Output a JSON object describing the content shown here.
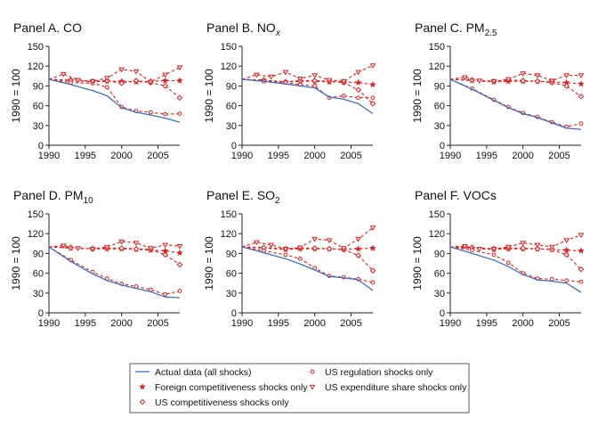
{
  "chart_data": [
    {
      "type": "line",
      "id": "A",
      "title": "Panel A. CO",
      "title_main": "Panel A. CO",
      "title_sub": "",
      "title_tail": "",
      "ylabel": "1990 = 100",
      "xlim": [
        1990,
        2008
      ],
      "ylim": [
        0,
        150
      ],
      "xticks": [
        "1990",
        "1995",
        "2000",
        "2005"
      ],
      "yticks": [
        "0",
        "30",
        "60",
        "90",
        "120",
        "150"
      ],
      "series": [
        {
          "name": "Actual data (all shocks)",
          "x": [
            1990,
            1993,
            1996,
            1998,
            2000,
            2002,
            2004,
            2006,
            2008
          ],
          "values": [
            100,
            92,
            83,
            75,
            57,
            50,
            46,
            41,
            35
          ]
        },
        {
          "name": "Foreign competitiveness shocks only",
          "x": [
            1990,
            1993,
            1996,
            1998,
            2000,
            2002,
            2004,
            2006,
            2008
          ],
          "values": [
            100,
            99,
            96,
            97,
            97,
            96,
            97,
            98,
            98
          ]
        },
        {
          "name": "US competitiveness shocks only",
          "x": [
            1990,
            1993,
            1996,
            1998,
            2000,
            2002,
            2004,
            2006,
            2008
          ],
          "values": [
            100,
            98,
            97,
            98,
            94,
            98,
            95,
            90,
            72
          ]
        },
        {
          "name": "US regulation shocks only",
          "x": [
            1990,
            1993,
            1996,
            1998,
            2000,
            2002,
            2004,
            2006,
            2008
          ],
          "values": [
            100,
            95,
            94,
            88,
            58,
            52,
            50,
            47,
            48
          ]
        },
        {
          "name": "US expenditure share shocks only",
          "x": [
            1990,
            1992,
            1994,
            1996,
            1998,
            2000,
            2002,
            2004,
            2006,
            2008
          ],
          "values": [
            100,
            108,
            99,
            97,
            102,
            115,
            112,
            96,
            107,
            118
          ]
        }
      ]
    },
    {
      "type": "line",
      "id": "B",
      "title": "Panel B. NOx",
      "title_main": "Panel B. NO",
      "title_sub": "x",
      "title_tail": "",
      "ylabel": "1990 = 100",
      "xlim": [
        1990,
        2008
      ],
      "ylim": [
        0,
        150
      ],
      "xticks": [
        "1990",
        "1995",
        "2000",
        "2005"
      ],
      "yticks": [
        "0",
        "30",
        "60",
        "90",
        "120",
        "150"
      ],
      "series": [
        {
          "name": "Actual data (all shocks)",
          "x": [
            1990,
            1993,
            1996,
            1998,
            2000,
            2002,
            2004,
            2006,
            2008
          ],
          "values": [
            100,
            97,
            93,
            90,
            87,
            73,
            70,
            63,
            48
          ]
        },
        {
          "name": "Foreign competitiveness shocks only",
          "x": [
            1990,
            1993,
            1996,
            1998,
            2000,
            2002,
            2004,
            2006,
            2008
          ],
          "values": [
            100,
            98,
            96,
            97,
            97,
            96,
            96,
            95,
            92
          ]
        },
        {
          "name": "US competitiveness shocks only",
          "x": [
            1990,
            1993,
            1996,
            1998,
            2000,
            2002,
            2004,
            2006,
            2008
          ],
          "values": [
            100,
            99,
            96,
            98,
            98,
            97,
            95,
            84,
            63
          ]
        },
        {
          "name": "US regulation shocks only",
          "x": [
            1990,
            1993,
            1996,
            1998,
            2000,
            2002,
            2004,
            2006,
            2008
          ],
          "values": [
            100,
            97,
            95,
            92,
            90,
            72,
            75,
            72,
            72
          ]
        },
        {
          "name": "US expenditure share shocks only",
          "x": [
            1990,
            1992,
            1994,
            1996,
            1998,
            2000,
            2002,
            2004,
            2006,
            2008
          ],
          "values": [
            100,
            107,
            104,
            111,
            101,
            106,
            99,
            97,
            111,
            121
          ]
        }
      ]
    },
    {
      "type": "line",
      "id": "C",
      "title": "Panel C. PM2.5",
      "title_main": "Panel C. PM",
      "title_sub": "2.5",
      "title_tail": "",
      "ylabel": "1990 = 100",
      "xlim": [
        1990,
        2008
      ],
      "ylim": [
        0,
        150
      ],
      "xticks": [
        "1990",
        "1995",
        "2000",
        "2005"
      ],
      "yticks": [
        "0",
        "30",
        "60",
        "90",
        "120",
        "150"
      ],
      "series": [
        {
          "name": "Actual data (all shocks)",
          "x": [
            1990,
            1993,
            1996,
            1998,
            2000,
            2002,
            2004,
            2006,
            2008
          ],
          "values": [
            100,
            85,
            68,
            57,
            48,
            42,
            34,
            26,
            24
          ]
        },
        {
          "name": "Foreign competitiveness shocks only",
          "x": [
            1990,
            1993,
            1996,
            1998,
            2000,
            2002,
            2004,
            2006,
            2008
          ],
          "values": [
            100,
            98,
            96,
            97,
            97,
            97,
            96,
            95,
            93
          ]
        },
        {
          "name": "US competitiveness shocks only",
          "x": [
            1990,
            1993,
            1996,
            1998,
            2000,
            2002,
            2004,
            2006,
            2008
          ],
          "values": [
            100,
            99,
            97,
            99,
            98,
            97,
            95,
            90,
            74
          ]
        },
        {
          "name": "US regulation shocks only",
          "x": [
            1990,
            1993,
            1996,
            1998,
            2000,
            2002,
            2004,
            2006,
            2008
          ],
          "values": [
            100,
            86,
            69,
            58,
            49,
            43,
            35,
            28,
            33
          ]
        },
        {
          "name": "US expenditure share shocks only",
          "x": [
            1990,
            1992,
            1994,
            1996,
            1998,
            2000,
            2002,
            2004,
            2006,
            2008
          ],
          "values": [
            100,
            103,
            98,
            97,
            100,
            109,
            106,
            98,
            106,
            106
          ]
        }
      ]
    },
    {
      "type": "line",
      "id": "D",
      "title": "Panel D. PM10",
      "title_main": "Panel D. PM",
      "title_sub": "10",
      "title_tail": "",
      "ylabel": "1990 = 100",
      "xlim": [
        1990,
        2008
      ],
      "ylim": [
        0,
        150
      ],
      "xticks": [
        "1990",
        "1995",
        "2000",
        "2005"
      ],
      "yticks": [
        "0",
        "30",
        "60",
        "90",
        "120",
        "150"
      ],
      "series": [
        {
          "name": "Actual data (all shocks)",
          "x": [
            1990,
            1993,
            1996,
            1998,
            2000,
            2002,
            2004,
            2006,
            2008
          ],
          "values": [
            100,
            78,
            59,
            49,
            42,
            37,
            32,
            24,
            23
          ]
        },
        {
          "name": "Foreign competitiveness shocks only",
          "x": [
            1990,
            1993,
            1996,
            1998,
            2000,
            2002,
            2004,
            2006,
            2008
          ],
          "values": [
            100,
            98,
            97,
            97,
            97,
            96,
            95,
            94,
            91
          ]
        },
        {
          "name": "US competitiveness shocks only",
          "x": [
            1990,
            1993,
            1996,
            1998,
            2000,
            2002,
            2004,
            2006,
            2008
          ],
          "values": [
            100,
            99,
            97,
            98,
            98,
            97,
            96,
            88,
            73
          ]
        },
        {
          "name": "US regulation shocks only",
          "x": [
            1990,
            1993,
            1996,
            1998,
            2000,
            2002,
            2004,
            2006,
            2008
          ],
          "values": [
            100,
            80,
            62,
            52,
            44,
            40,
            35,
            28,
            33
          ]
        },
        {
          "name": "US expenditure share shocks only",
          "x": [
            1990,
            1992,
            1994,
            1996,
            1998,
            2000,
            2002,
            2004,
            2006,
            2008
          ],
          "values": [
            100,
            102,
            98,
            97,
            100,
            108,
            106,
            98,
            103,
            101
          ]
        }
      ]
    },
    {
      "type": "line",
      "id": "E",
      "title": "Panel E. SO2",
      "title_main": "Panel E. SO",
      "title_sub": "2",
      "title_tail": "",
      "ylabel": "1990 = 100",
      "xlim": [
        1990,
        2008
      ],
      "ylim": [
        0,
        150
      ],
      "xticks": [
        "1990",
        "1995",
        "2000",
        "2005"
      ],
      "yticks": [
        "0",
        "30",
        "60",
        "90",
        "120",
        "150"
      ],
      "series": [
        {
          "name": "Actual data (all shocks)",
          "x": [
            1990,
            1993,
            1996,
            1998,
            2000,
            2002,
            2004,
            2006,
            2008
          ],
          "values": [
            100,
            91,
            82,
            74,
            65,
            55,
            53,
            50,
            34
          ]
        },
        {
          "name": "Foreign competitiveness shocks only",
          "x": [
            1990,
            1993,
            1996,
            1998,
            2000,
            2002,
            2004,
            2006,
            2008
          ],
          "values": [
            100,
            98,
            96,
            97,
            97,
            97,
            96,
            97,
            98
          ]
        },
        {
          "name": "US competitiveness shocks only",
          "x": [
            1990,
            1993,
            1996,
            1998,
            2000,
            2002,
            2004,
            2006,
            2008
          ],
          "values": [
            100,
            99,
            97,
            98,
            98,
            97,
            96,
            87,
            64
          ]
        },
        {
          "name": "US regulation shocks only",
          "x": [
            1990,
            1993,
            1996,
            1998,
            2000,
            2002,
            2004,
            2006,
            2008
          ],
          "values": [
            100,
            94,
            88,
            82,
            68,
            56,
            54,
            51,
            46
          ]
        },
        {
          "name": "US expenditure share shocks only",
          "x": [
            1990,
            1992,
            1994,
            1996,
            1998,
            2000,
            2002,
            2004,
            2006,
            2008
          ],
          "values": [
            100,
            107,
            103,
            97,
            99,
            112,
            110,
            98,
            112,
            129
          ]
        }
      ]
    },
    {
      "type": "line",
      "id": "F",
      "title": "Panel F. VOCs",
      "title_main": "Panel F. VOCs",
      "title_sub": "",
      "title_tail": "",
      "ylabel": "1990 = 100",
      "xlim": [
        1990,
        2008
      ],
      "ylim": [
        0,
        150
      ],
      "xticks": [
        "1990",
        "1995",
        "2000",
        "2005"
      ],
      "yticks": [
        "0",
        "30",
        "60",
        "90",
        "120",
        "150"
      ],
      "series": [
        {
          "name": "Actual data (all shocks)",
          "x": [
            1990,
            1993,
            1996,
            1998,
            2000,
            2002,
            2004,
            2006,
            2008
          ],
          "values": [
            100,
            90,
            80,
            70,
            58,
            50,
            48,
            45,
            31
          ]
        },
        {
          "name": "Foreign competitiveness shocks only",
          "x": [
            1990,
            1993,
            1996,
            1998,
            2000,
            2002,
            2004,
            2006,
            2008
          ],
          "values": [
            100,
            98,
            96,
            97,
            97,
            97,
            96,
            95,
            94
          ]
        },
        {
          "name": "US competitiveness shocks only",
          "x": [
            1990,
            1993,
            1996,
            1998,
            2000,
            2002,
            2004,
            2006,
            2008
          ],
          "values": [
            100,
            99,
            97,
            98,
            98,
            97,
            96,
            88,
            66
          ]
        },
        {
          "name": "US regulation shocks only",
          "x": [
            1990,
            1993,
            1996,
            1998,
            2000,
            2002,
            2004,
            2006,
            2008
          ],
          "values": [
            100,
            95,
            88,
            76,
            60,
            52,
            51,
            49,
            47
          ]
        },
        {
          "name": "US expenditure share shocks only",
          "x": [
            1990,
            1992,
            1994,
            1996,
            1998,
            2000,
            2002,
            2004,
            2006,
            2008
          ],
          "values": [
            100,
            101,
            97,
            97,
            100,
            106,
            103,
            100,
            110,
            118
          ]
        }
      ]
    }
  ],
  "legend": {
    "placement": "bottom-center",
    "items": [
      {
        "label": "Actual data (all shocks)",
        "marker": "line"
      },
      {
        "label": "US regulation shocks only",
        "marker": "open-circle"
      },
      {
        "label": "Foreign competitiveness shocks only",
        "marker": "star"
      },
      {
        "label": "US expenditure share shocks only",
        "marker": "triangle-down"
      },
      {
        "label": "US competitiveness shocks only",
        "marker": "open-diamond"
      }
    ]
  },
  "colors": {
    "actual": "#3b6fc4",
    "counterfactual": "#e02020"
  }
}
